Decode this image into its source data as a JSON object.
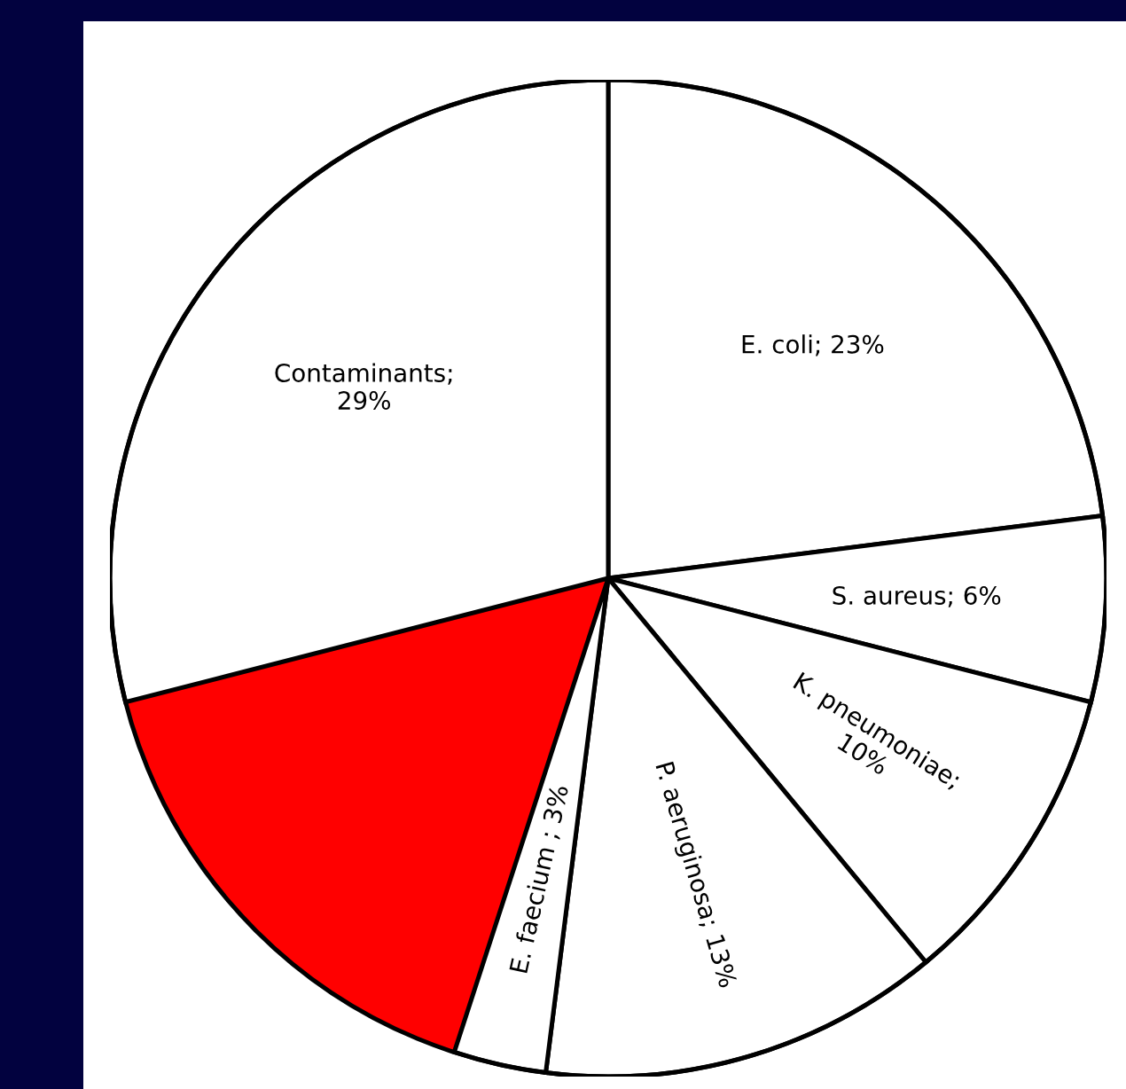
{
  "chart_data": {
    "type": "pie",
    "categories": [
      "E. coli; 23%",
      "S. aureus; 6%",
      "K. pneumoniae;\n10%",
      "P. aeruginosa; 13%",
      "E. faecium ; 3%",
      null,
      "Contaminants;\n29%"
    ],
    "values": [
      23,
      6,
      10,
      13,
      3,
      16,
      29
    ],
    "colors": [
      "#ffffff",
      "#ffffff",
      "#ffffff",
      "#ffffff",
      "#ffffff",
      "#ff0000",
      "#ffffff"
    ],
    "legend": false
  }
}
